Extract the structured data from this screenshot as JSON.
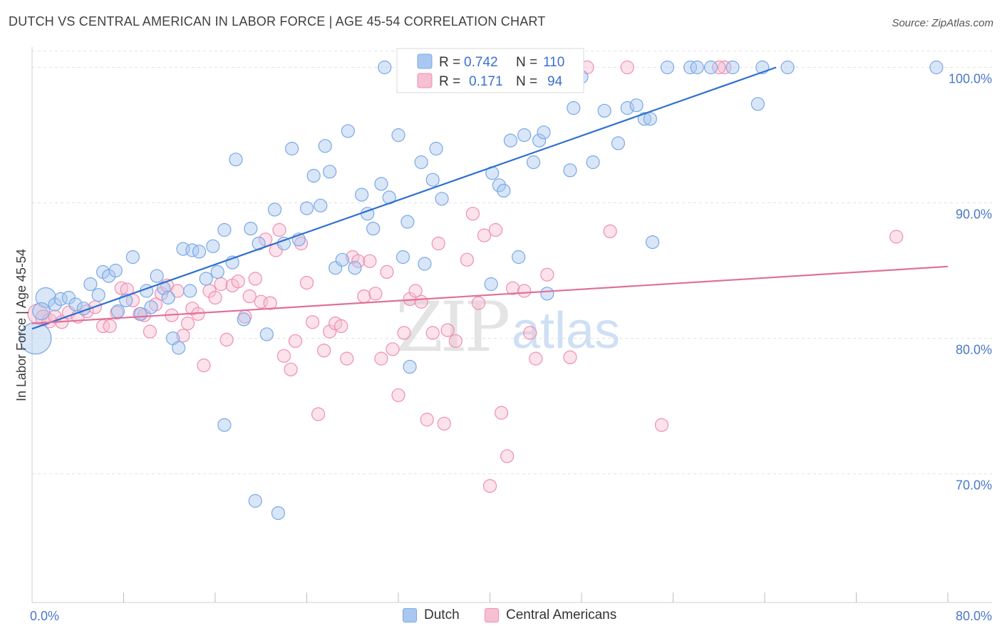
{
  "title": "DUTCH VS CENTRAL AMERICAN IN LABOR FORCE | AGE 45-54 CORRELATION CHART",
  "source": "Source: ZipAtlas.com",
  "watermark": {
    "zip": "ZIP",
    "atlas": "atlas"
  },
  "chart_data": {
    "type": "scatter",
    "ylabel": "In Labor Force | Age 45-54",
    "xlabel": "",
    "xlim": [
      0,
      80
    ],
    "ylim": [
      60.5,
      101.5
    ],
    "x_tick_labels": {
      "left": "0.0%",
      "right": "80.0%"
    },
    "y_ticks": [
      {
        "value": 100,
        "label": "100.0%"
      },
      {
        "value": 90,
        "label": "90.0%"
      },
      {
        "value": 80,
        "label": "80.0%"
      },
      {
        "value": 70,
        "label": "70.0%"
      }
    ],
    "legend": {
      "r_label": "R =",
      "n_label": "N =",
      "entries": [
        {
          "name": "Dutch",
          "r": "0.742",
          "n": "110",
          "color": "#7aa8e6",
          "fill": "#a9c8f0",
          "line": "#2e6fd0"
        },
        {
          "name": "Central Americans",
          "r": "0.171",
          "n": "94",
          "color": "#ee8fb0",
          "fill": "#f7bfd2",
          "line": "#e0709a"
        }
      ]
    },
    "series": [
      {
        "name": "Dutch",
        "trend": {
          "x0": 0,
          "y0": 80.7,
          "x1": 65,
          "y1": 100.0
        },
        "points": [
          [
            0.3,
            80.0,
            22
          ],
          [
            1.2,
            83.0,
            14
          ],
          [
            0.8,
            82.0,
            12
          ],
          [
            2.0,
            82.5,
            9
          ],
          [
            2.5,
            82.9,
            9
          ],
          [
            3.2,
            83.0,
            9
          ],
          [
            3.8,
            82.5,
            9
          ],
          [
            4.5,
            82.2,
            9
          ],
          [
            5.1,
            84.0,
            9
          ],
          [
            5.8,
            83.2,
            9
          ],
          [
            6.2,
            84.9,
            9
          ],
          [
            6.7,
            84.6,
            9
          ],
          [
            7.3,
            85.0,
            9
          ],
          [
            7.5,
            82.0,
            9
          ],
          [
            8.2,
            82.8,
            9
          ],
          [
            8.8,
            86.0,
            9
          ],
          [
            9.5,
            81.8,
            9
          ],
          [
            10.0,
            83.5,
            9
          ],
          [
            10.4,
            82.3,
            9
          ],
          [
            10.9,
            84.6,
            9
          ],
          [
            11.5,
            83.7,
            9
          ],
          [
            11.9,
            83.0,
            9
          ],
          [
            12.3,
            80.0,
            9
          ],
          [
            12.8,
            79.3,
            9
          ],
          [
            13.2,
            86.6,
            9
          ],
          [
            13.8,
            83.5,
            9
          ],
          [
            14.0,
            86.5,
            9
          ],
          [
            14.6,
            86.4,
            9
          ],
          [
            15.2,
            84.4,
            9
          ],
          [
            15.8,
            86.8,
            9
          ],
          [
            16.2,
            84.9,
            9
          ],
          [
            16.8,
            88.0,
            9
          ],
          [
            17.5,
            85.6,
            9
          ],
          [
            17.8,
            93.2,
            9
          ],
          [
            18.5,
            81.4,
            9
          ],
          [
            19.1,
            88.1,
            9
          ],
          [
            19.8,
            87.0,
            9
          ],
          [
            20.5,
            80.3,
            9
          ],
          [
            21.2,
            89.5,
            9
          ],
          [
            22.0,
            87.0,
            9
          ],
          [
            22.7,
            94.0,
            9
          ],
          [
            23.3,
            87.3,
            9
          ],
          [
            24.0,
            89.6,
            9
          ],
          [
            24.6,
            92.0,
            9
          ],
          [
            25.2,
            89.8,
            9
          ],
          [
            25.6,
            94.2,
            9
          ],
          [
            26.0,
            92.3,
            9
          ],
          [
            26.5,
            85.2,
            9
          ],
          [
            27.1,
            85.8,
            9
          ],
          [
            27.6,
            95.3,
            9
          ],
          [
            28.2,
            85.2,
            9
          ],
          [
            28.8,
            90.6,
            9
          ],
          [
            29.3,
            89.2,
            9
          ],
          [
            29.8,
            88.1,
            9
          ],
          [
            30.5,
            91.4,
            9
          ],
          [
            30.8,
            100.0,
            9
          ],
          [
            31.2,
            90.4,
            9
          ],
          [
            32.0,
            95.0,
            9
          ],
          [
            32.4,
            86.0,
            9
          ],
          [
            32.8,
            88.6,
            9
          ],
          [
            33.0,
            77.9,
            9
          ],
          [
            34.0,
            93.0,
            9
          ],
          [
            34.3,
            85.5,
            9
          ],
          [
            35.0,
            91.7,
            9
          ],
          [
            35.3,
            94.0,
            9
          ],
          [
            35.8,
            90.3,
            9
          ],
          [
            36.5,
            100.0,
            9
          ],
          [
            37.5,
            100.0,
            9
          ],
          [
            38.5,
            100.0,
            9
          ],
          [
            39.0,
            100.0,
            9
          ],
          [
            40.1,
            84.0,
            9
          ],
          [
            40.5,
            100.0,
            9
          ],
          [
            40.2,
            92.2,
            9
          ],
          [
            40.8,
            91.3,
            9
          ],
          [
            41.2,
            90.9,
            9
          ],
          [
            41.8,
            94.6,
            9
          ],
          [
            42.5,
            86.0,
            9
          ],
          [
            43.0,
            95.0,
            9
          ],
          [
            43.8,
            93.0,
            9
          ],
          [
            44.3,
            94.6,
            9
          ],
          [
            44.7,
            95.2,
            9
          ],
          [
            45.0,
            83.3,
            9
          ],
          [
            45.5,
            99.0,
            9
          ],
          [
            47.0,
            92.4,
            9
          ],
          [
            47.3,
            97.0,
            9
          ],
          [
            48.0,
            99.3,
            9
          ],
          [
            49.0,
            93.0,
            9
          ],
          [
            50.0,
            96.8,
            9
          ],
          [
            51.2,
            94.4,
            9
          ],
          [
            52.0,
            97.0,
            9
          ],
          [
            52.8,
            97.2,
            9
          ],
          [
            53.5,
            96.2,
            9
          ],
          [
            54.0,
            96.2,
            9
          ],
          [
            54.2,
            87.1,
            9
          ],
          [
            55.5,
            100.0,
            9
          ],
          [
            57.5,
            100.0,
            9
          ],
          [
            58.1,
            100.0,
            9
          ],
          [
            59.3,
            100.0,
            9
          ],
          [
            61.2,
            100.0,
            9
          ],
          [
            63.4,
            97.3,
            9
          ],
          [
            63.8,
            100.0,
            9
          ],
          [
            66.0,
            100.0,
            9
          ],
          [
            79.0,
            100.0,
            9
          ],
          [
            16.8,
            73.6,
            9
          ],
          [
            19.5,
            68.0,
            9
          ],
          [
            21.5,
            67.1,
            9
          ]
        ]
      },
      {
        "name": "Central Americans",
        "trend": {
          "x0": 0,
          "y0": 81.1,
          "x1": 80,
          "y1": 85.3
        },
        "points": [
          [
            0.5,
            81.8,
            14
          ],
          [
            1.0,
            81.5,
            11
          ],
          [
            1.5,
            81.3,
            10
          ],
          [
            2.0,
            81.6,
            9
          ],
          [
            2.6,
            81.2,
            9
          ],
          [
            3.2,
            81.9,
            9
          ],
          [
            4.0,
            81.6,
            9
          ],
          [
            4.8,
            82.0,
            9
          ],
          [
            5.5,
            82.3,
            9
          ],
          [
            6.2,
            80.9,
            9
          ],
          [
            6.8,
            80.9,
            9
          ],
          [
            7.4,
            81.9,
            9
          ],
          [
            7.8,
            83.7,
            9
          ],
          [
            8.3,
            83.6,
            9
          ],
          [
            8.8,
            82.8,
            9
          ],
          [
            9.4,
            81.8,
            9
          ],
          [
            9.8,
            81.7,
            9
          ],
          [
            10.3,
            80.5,
            9
          ],
          [
            10.8,
            82.5,
            9
          ],
          [
            11.3,
            83.3,
            9
          ],
          [
            11.8,
            83.9,
            9
          ],
          [
            12.2,
            81.7,
            9
          ],
          [
            12.7,
            83.5,
            9
          ],
          [
            13.2,
            80.2,
            9
          ],
          [
            13.6,
            81.1,
            9
          ],
          [
            14.0,
            82.2,
            9
          ],
          [
            14.5,
            81.8,
            9
          ],
          [
            15.0,
            78.0,
            9
          ],
          [
            15.5,
            83.5,
            9
          ],
          [
            16.0,
            83.0,
            9
          ],
          [
            16.5,
            84.0,
            9
          ],
          [
            17.0,
            79.9,
            9
          ],
          [
            17.5,
            83.9,
            9
          ],
          [
            18.0,
            84.2,
            9
          ],
          [
            18.6,
            81.6,
            9
          ],
          [
            19.0,
            83.1,
            9
          ],
          [
            19.5,
            84.4,
            9
          ],
          [
            20.0,
            82.7,
            9
          ],
          [
            20.4,
            87.3,
            9
          ],
          [
            20.8,
            82.6,
            9
          ],
          [
            21.3,
            86.5,
            9
          ],
          [
            21.6,
            88.0,
            9
          ],
          [
            22.0,
            78.7,
            9
          ],
          [
            22.6,
            77.7,
            9
          ],
          [
            23.0,
            79.8,
            9
          ],
          [
            23.5,
            87.0,
            9
          ],
          [
            24.0,
            84.1,
            9
          ],
          [
            24.5,
            81.2,
            9
          ],
          [
            25.0,
            74.4,
            9
          ],
          [
            25.5,
            79.1,
            9
          ],
          [
            26.0,
            80.5,
            9
          ],
          [
            26.5,
            81.1,
            9
          ],
          [
            27.0,
            80.9,
            9
          ],
          [
            27.5,
            78.5,
            9
          ],
          [
            28.0,
            86.0,
            9
          ],
          [
            28.5,
            85.7,
            9
          ],
          [
            29.0,
            83.1,
            9
          ],
          [
            29.5,
            85.7,
            9
          ],
          [
            30.0,
            83.3,
            9
          ],
          [
            30.5,
            78.5,
            9
          ],
          [
            31.0,
            84.9,
            9
          ],
          [
            31.5,
            79.2,
            9
          ],
          [
            32.0,
            75.8,
            9
          ],
          [
            32.5,
            80.4,
            9
          ],
          [
            33.0,
            82.9,
            9
          ],
          [
            33.5,
            83.5,
            9
          ],
          [
            34.0,
            82.7,
            9
          ],
          [
            34.5,
            74.0,
            9
          ],
          [
            35.0,
            80.4,
            9
          ],
          [
            35.5,
            87.0,
            9
          ],
          [
            36.0,
            73.7,
            9
          ],
          [
            36.3,
            80.6,
            9
          ],
          [
            37.0,
            79.8,
            9
          ],
          [
            38.0,
            85.8,
            9
          ],
          [
            38.5,
            89.2,
            9
          ],
          [
            39.0,
            82.6,
            9
          ],
          [
            39.5,
            87.6,
            9
          ],
          [
            40.0,
            69.1,
            9
          ],
          [
            40.5,
            88.0,
            9
          ],
          [
            41.0,
            74.5,
            9
          ],
          [
            41.5,
            71.3,
            9
          ],
          [
            42.0,
            83.7,
            9
          ],
          [
            43.0,
            83.5,
            9
          ],
          [
            43.5,
            80.4,
            9
          ],
          [
            44.0,
            78.5,
            9
          ],
          [
            45.0,
            84.7,
            9
          ],
          [
            47.0,
            78.6,
            9
          ],
          [
            48.5,
            100.0,
            9
          ],
          [
            50.5,
            87.9,
            9
          ],
          [
            52.0,
            100.0,
            9
          ],
          [
            55.0,
            73.6,
            9
          ],
          [
            60.5,
            100.0,
            9
          ],
          [
            75.5,
            87.5,
            9
          ],
          [
            60.0,
            100.0,
            9
          ]
        ]
      }
    ]
  }
}
